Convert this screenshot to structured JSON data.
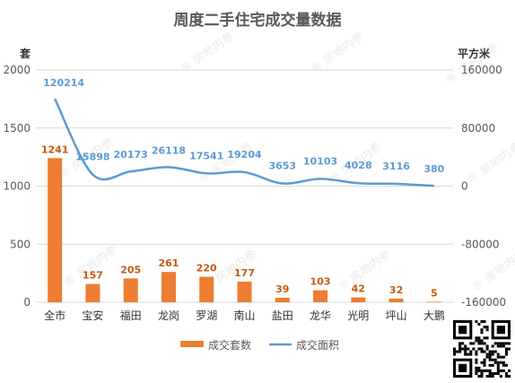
{
  "chart_data": {
    "type": "bar",
    "title": "周度二手住宅成交量数据",
    "y_left_label": "套",
    "y_right_label": "平方米",
    "categories": [
      "全市",
      "宝安",
      "福田",
      "龙岗",
      "罗湖",
      "南山",
      "盐田",
      "龙华",
      "光明",
      "坪山",
      "大鹏"
    ],
    "y_left_ticks": [
      "0",
      "500",
      "1000",
      "1500",
      "2000"
    ],
    "y_left_range": [
      0,
      2000
    ],
    "y_right_ticks": [
      "-160000",
      "-80000",
      "0",
      "80000",
      "160000"
    ],
    "y_right_range": [
      -160000,
      160000
    ],
    "grid": true,
    "legend_position": "bottom",
    "series": [
      {
        "name": "成交套数",
        "type": "bar",
        "axis": "left",
        "color": "#ed7d31",
        "values": [
          1241,
          157,
          205,
          261,
          220,
          177,
          39,
          103,
          42,
          32,
          5
        ],
        "labels": [
          "1241",
          "157",
          "205",
          "261",
          "220",
          "177",
          "39",
          "103",
          "42",
          "32",
          "5"
        ]
      },
      {
        "name": "成交面积",
        "type": "line",
        "axis": "right",
        "color": "#5b9bd5",
        "values": [
          120214,
          15898,
          20173,
          26118,
          17541,
          19204,
          3653,
          10103,
          4028,
          3116,
          380
        ],
        "labels": [
          "120214",
          "15898",
          "20173",
          "26118",
          "17541",
          "19204",
          "3653",
          "10103",
          "4028",
          "3116",
          "380"
        ]
      }
    ]
  },
  "watermark": "房地内参",
  "qr_icon": "qr-code-icon"
}
